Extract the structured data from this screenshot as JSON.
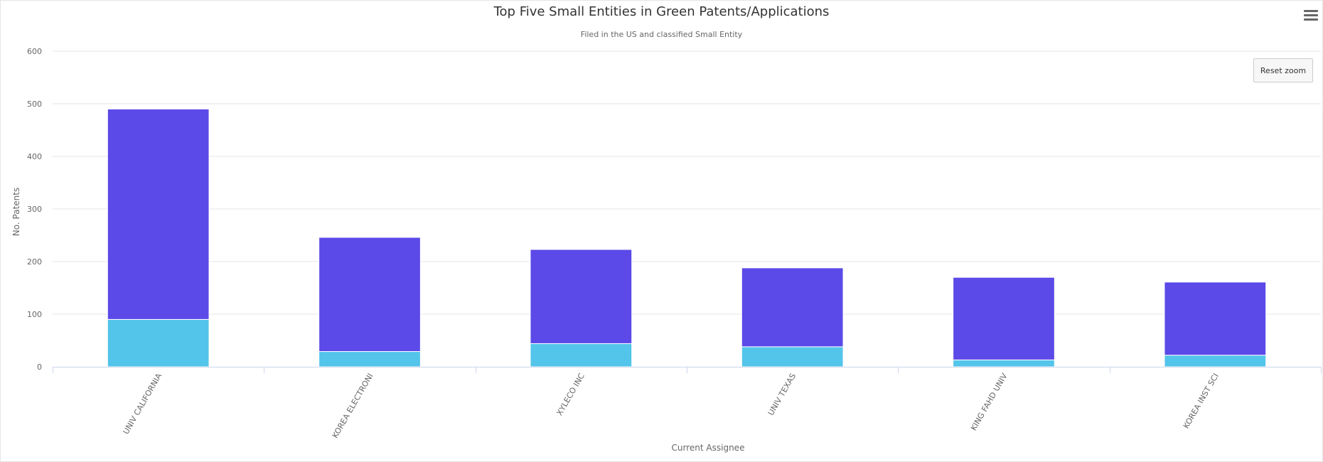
{
  "chart_data": {
    "type": "bar",
    "stacked": true,
    "title": "Top Five Small Entities in Green Patents/Applications",
    "subtitle": "Filed in the US and classified Small Entity",
    "xlabel": "Current Assignee",
    "ylabel": "No. Patents",
    "ylim": [
      0,
      600
    ],
    "yticks": [
      0,
      100,
      200,
      300,
      400,
      500,
      600
    ],
    "grid": true,
    "categories": [
      "UNIV CALIFORNIA",
      "KOREA ELECTRONI",
      "XYLECO INC",
      "UNIV TEXAS",
      "KING FAHD UNIV",
      "KOREA INST SCI"
    ],
    "series": [
      {
        "color": "#5b49e8",
        "values": [
          400,
          217,
          179,
          150,
          157,
          139
        ]
      },
      {
        "color": "#53c4ea",
        "values": [
          90,
          29,
          44,
          38,
          13,
          22
        ]
      }
    ]
  },
  "ui": {
    "reset_zoom_label": "Reset zoom",
    "menu_icon": "hamburger-menu-icon"
  }
}
